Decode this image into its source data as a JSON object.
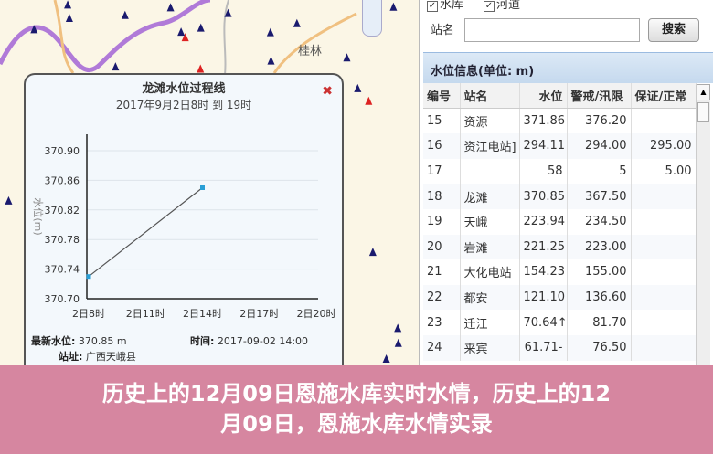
{
  "map": {
    "city_label": "桂林"
  },
  "popup": {
    "title": "龙滩水位过程线",
    "subtitle": "2017年9月2日8时 到 19时",
    "close_icon": "close-x-icon",
    "latest_label": "最新水位:",
    "latest_value": "370.85 m",
    "time_label": "时间:",
    "time_value": "2017-09-02 14:00",
    "site_label": "站址:",
    "site_value": "广西天峨县"
  },
  "chart_data": {
    "type": "line",
    "title": "龙滩水位过程线",
    "subtitle": "2017年9月2日8时 到 19时",
    "ylabel": "水位(m)",
    "xlabel": "",
    "ylim": [
      370.7,
      370.9
    ],
    "yticks": [
      "370.90",
      "370.86",
      "370.82",
      "370.78",
      "370.74",
      "370.70"
    ],
    "xticks": [
      "2日8时",
      "2日11时",
      "2日14时",
      "2日17时",
      "2日20时"
    ],
    "xlim_hours": [
      8,
      20
    ],
    "x_hours": [
      8,
      14
    ],
    "values": [
      370.73,
      370.85
    ],
    "grid": true,
    "line_color": "#555555",
    "marker_color": "#2a9fd6"
  },
  "panel": {
    "checkboxes": [
      {
        "label": "水库",
        "checked": true
      },
      {
        "label": "河道",
        "checked": true
      }
    ],
    "station_label": "站名",
    "station_value": "",
    "search_button": "搜索",
    "section_title": "水位信息(单位: m)",
    "columns": [
      "编号",
      "站名",
      "水位",
      "警戒/汛限",
      "保证/正常"
    ],
    "rows": [
      [
        "15",
        "资源",
        "371.86",
        "376.20",
        ""
      ],
      [
        "16",
        "资江电站]",
        "294.11",
        "294.00",
        "295.00"
      ],
      [
        "17",
        "",
        "58",
        "5",
        "5.00"
      ],
      [
        "18",
        "龙滩",
        "370.85",
        "367.50",
        ""
      ],
      [
        "19",
        "天峨",
        "223.94",
        "234.50",
        ""
      ],
      [
        "20",
        "岩滩",
        "221.25",
        "223.00",
        ""
      ],
      [
        "21",
        "大化电站",
        "154.23",
        "155.00",
        ""
      ],
      [
        "22",
        "都安",
        "121.10",
        "136.60",
        ""
      ],
      [
        "23",
        "迁江",
        "70.64↑",
        "81.70",
        ""
      ],
      [
        "24",
        "来宾",
        "61.71-",
        "76.50",
        ""
      ]
    ]
  },
  "banner": {
    "line1": "历史上的12月09日恩施水库实时水情，历史上的12",
    "line2": "月09日，恩施水库水情实录"
  }
}
